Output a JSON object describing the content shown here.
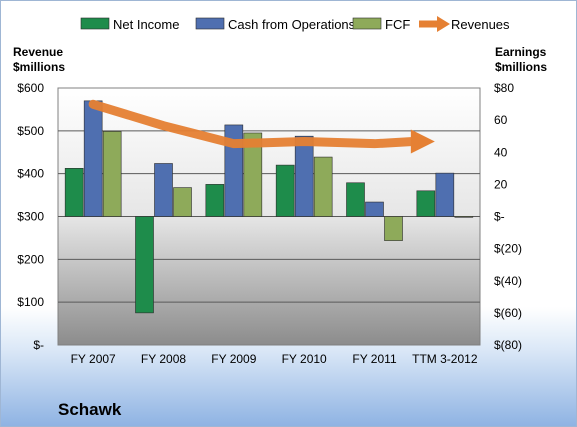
{
  "chart_data": {
    "type": "bar",
    "company": "Schawk",
    "categories": [
      "FY 2007",
      "FY 2008",
      "FY 2009",
      "FY 2010",
      "FY 2011",
      "TTM 3-2012"
    ],
    "left_axis": {
      "title_line1": "Revenue",
      "title_line2": "$millions",
      "min": 0,
      "max": 600,
      "step": 100,
      "tick_labels": [
        "$-",
        "$100",
        "$200",
        "$300",
        "$400",
        "$500",
        "$600"
      ]
    },
    "right_axis": {
      "title_line1": "Earnings",
      "title_line2": "$millions",
      "min": -80,
      "max": 80,
      "step": 20,
      "tick_labels": [
        "$(80)",
        "$(60)",
        "$(40)",
        "$(20)",
        "$-",
        "20",
        "40",
        "60",
        "$80"
      ]
    },
    "series": [
      {
        "name": "Net Income",
        "axis": "right",
        "kind": "bar",
        "color": "#1e8c4b",
        "values": [
          30,
          -60,
          20,
          32,
          21,
          16
        ]
      },
      {
        "name": "Cash from Operations",
        "axis": "right",
        "kind": "bar",
        "color": "#4f6fb0",
        "values": [
          72,
          33,
          57,
          50,
          9,
          27
        ]
      },
      {
        "name": "FCF",
        "axis": "right",
        "kind": "bar",
        "color": "#8eaa5a",
        "values": [
          53,
          18,
          52,
          37,
          -15,
          0
        ]
      },
      {
        "name": "Revenues",
        "axis": "left",
        "kind": "line",
        "color": "#e58033",
        "values": [
          562,
          512,
          470,
          475,
          470,
          475
        ]
      }
    ],
    "legend_position": "top",
    "grid": true
  }
}
